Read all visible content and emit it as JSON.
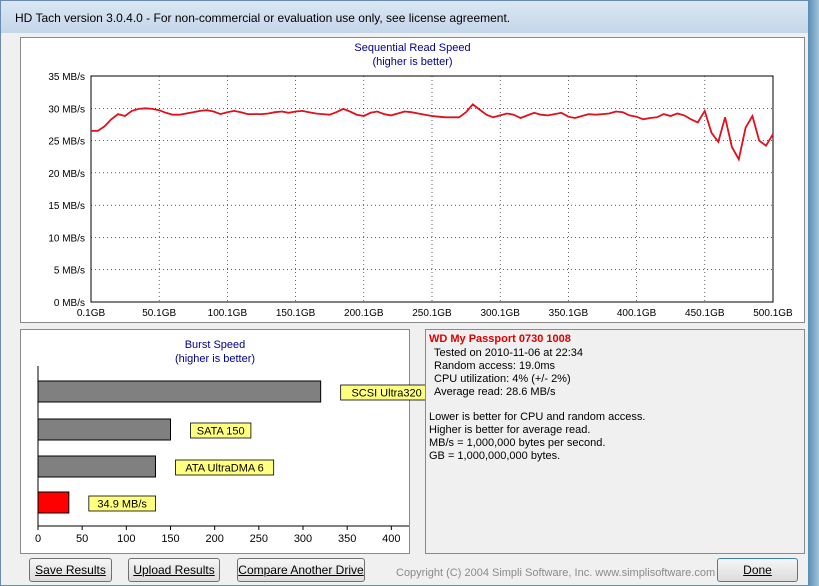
{
  "window": {
    "title": "HD Tach version 3.0.4.0  - For non-commercial or evaluation use only, see license agreement."
  },
  "read_chart": {
    "title": "Sequential Read Speed",
    "subtitle": "(higher is better)",
    "y_ticks": [
      "35 MB/s",
      "30 MB/s",
      "25 MB/s",
      "20 MB/s",
      "15 MB/s",
      "10 MB/s",
      "5 MB/s",
      "0 MB/s"
    ],
    "x_ticks": [
      "0.1GB",
      "50.1GB",
      "100.1GB",
      "150.1GB",
      "200.1GB",
      "250.1GB",
      "300.1GB",
      "350.1GB",
      "400.1GB",
      "450.1GB",
      "500.1GB"
    ],
    "line_color": "#e0101c"
  },
  "burst_chart": {
    "title": "Burst Speed",
    "subtitle": "(higher is better)",
    "x_ticks": [
      "0",
      "50",
      "100",
      "150",
      "200",
      "250",
      "300",
      "350",
      "400"
    ]
  },
  "chart_data": [
    {
      "type": "line",
      "title": "Sequential Read Speed",
      "subtitle": "(higher is better)",
      "xlabel": "",
      "ylabel": "",
      "xlim": [
        0.1,
        500.1
      ],
      "ylim": [
        0,
        35
      ],
      "x": [
        0.1,
        5,
        10,
        15,
        20,
        25,
        30,
        35,
        40,
        45,
        50,
        55,
        60,
        65,
        70,
        75,
        80,
        85,
        90,
        95,
        100,
        105,
        110,
        115,
        120,
        125,
        130,
        135,
        140,
        145,
        150,
        155,
        160,
        165,
        170,
        175,
        180,
        185,
        190,
        195,
        200,
        205,
        210,
        215,
        220,
        225,
        230,
        235,
        240,
        245,
        250,
        255,
        260,
        265,
        270,
        275,
        280,
        285,
        290,
        295,
        300,
        305,
        310,
        315,
        320,
        325,
        330,
        335,
        340,
        345,
        350,
        355,
        360,
        365,
        370,
        375,
        380,
        385,
        390,
        395,
        400,
        405,
        410,
        415,
        420,
        425,
        430,
        435,
        440,
        445,
        450,
        455,
        460,
        465,
        470,
        475,
        480,
        485,
        490,
        495,
        500.1
      ],
      "series": [
        {
          "values": [
            26.5,
            26.5,
            27.2,
            28.3,
            29.1,
            28.8,
            29.6,
            29.9,
            30.0,
            29.9,
            29.7,
            29.3,
            29.0,
            29.0,
            29.2,
            29.4,
            29.6,
            29.7,
            29.5,
            29.1,
            29.4,
            29.6,
            29.4,
            29.1,
            29.1,
            29.1,
            29.2,
            29.4,
            29.5,
            29.3,
            29.5,
            29.6,
            29.4,
            29.2,
            29.1,
            29.0,
            29.4,
            29.9,
            29.5,
            29.0,
            28.8,
            29.3,
            29.5,
            29.1,
            28.9,
            29.2,
            29.5,
            29.4,
            29.2,
            29.0,
            28.8,
            28.7,
            28.6,
            28.6,
            28.6,
            29.4,
            30.6,
            29.8,
            29.0,
            28.6,
            28.9,
            29.2,
            29.0,
            28.5,
            28.9,
            29.3,
            29.0,
            28.9,
            29.1,
            29.3,
            28.7,
            28.5,
            28.8,
            29.1,
            29.0,
            29.1,
            29.2,
            29.5,
            29.4,
            28.9,
            28.7,
            28.3,
            28.5,
            28.6,
            29.1,
            28.8,
            29.2,
            28.9,
            28.3,
            27.8,
            29.6,
            26.2,
            24.8,
            28.6,
            24.0,
            22.1,
            27.0,
            28.8,
            25.0,
            24.2,
            26.0
          ]
        }
      ]
    },
    {
      "type": "bar",
      "orientation": "horizontal",
      "title": "Burst Speed",
      "subtitle": "(higher is better)",
      "xlim": [
        0,
        420
      ],
      "categories": [
        "SCSI Ultra320",
        "SATA 150",
        "ATA UltraDMA 6",
        "34.9 MB/s"
      ],
      "values": [
        320,
        150,
        133,
        34.9
      ],
      "colors": [
        "#808080",
        "#808080",
        "#808080",
        "#ff0000"
      ],
      "label_bg": "#ffff80"
    }
  ],
  "info": {
    "drive_name": "WD My Passport 0730 1008",
    "tested_on": "Tested on 2010-11-06 at 22:34",
    "random_access": "Random access: 19.0ms",
    "cpu_util": "CPU utilization: 4% (+/- 2%)",
    "avg_read": "Average read: 28.6 MB/s",
    "note1": "Lower is better for CPU and random access.",
    "note2": "Higher is better for average read.",
    "note3": "MB/s = 1,000,000 bytes per second.",
    "note4": "GB = 1,000,000,000 bytes."
  },
  "buttons": {
    "save": "Save Results",
    "upload": "Upload Results",
    "compare": "Compare Another Drive",
    "done": "Done"
  },
  "copyright": "Copyright (C) 2004 Simpli Software, Inc. www.simplisoftware.com"
}
